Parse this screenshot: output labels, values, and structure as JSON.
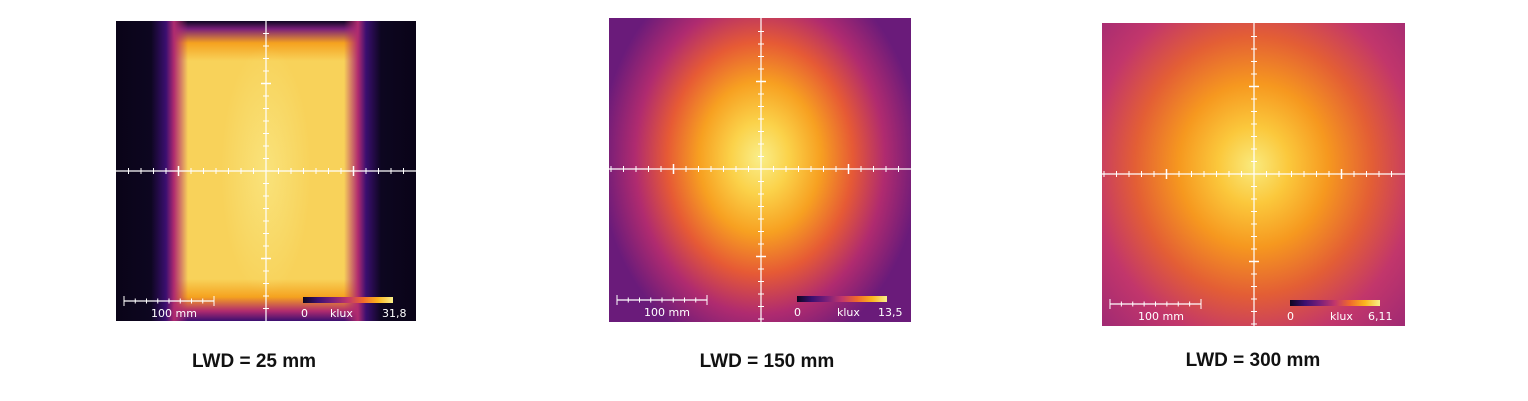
{
  "panels": [
    {
      "caption": "LWD = 25 mm",
      "scale_label": "100 mm",
      "colorbar": {
        "min_label": "0",
        "unit_label": "klux",
        "max_label": "31,8"
      }
    },
    {
      "caption": "LWD = 150 mm",
      "scale_label": "100 mm",
      "colorbar": {
        "min_label": "0",
        "unit_label": "klux",
        "max_label": "13,5"
      }
    },
    {
      "caption": "LWD = 300 mm",
      "scale_label": "100 mm",
      "colorbar": {
        "min_label": "0",
        "unit_label": "klux",
        "max_label": "6,11"
      }
    }
  ],
  "colormap": [
    "#0d0620",
    "#3b0f70",
    "#7a1f7a",
    "#c2366b",
    "#f06a2b",
    "#fbb51d",
    "#f9f08a"
  ]
}
